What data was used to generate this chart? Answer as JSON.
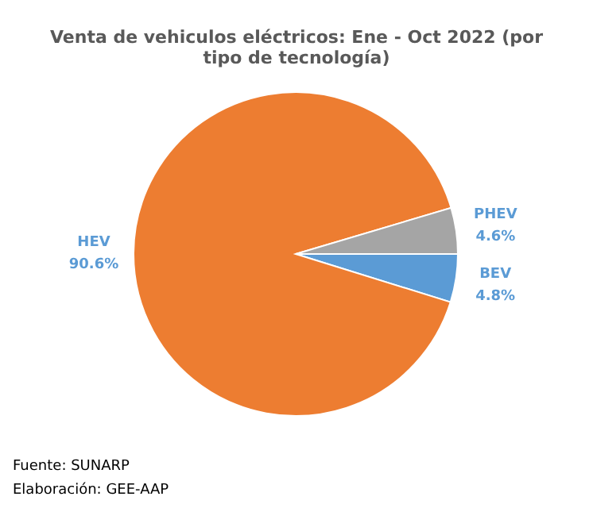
{
  "chart_data": {
    "type": "pie",
    "title": "Venta de vehiculos eléctricos: Ene - Oct 2022 (por tipo de tecnología)",
    "categories": [
      "BEV",
      "HEV",
      "PHEV"
    ],
    "values": [
      4.8,
      90.6,
      4.6
    ],
    "value_labels": [
      "4.8%",
      "90.6%",
      "4.6%"
    ],
    "colors": [
      "#5b9bd5",
      "#ed7d31",
      "#a5a5a5"
    ],
    "legend": false,
    "annotations": [
      "Fuente: SUNARP",
      "Elaboración: GEE-AAP"
    ]
  }
}
